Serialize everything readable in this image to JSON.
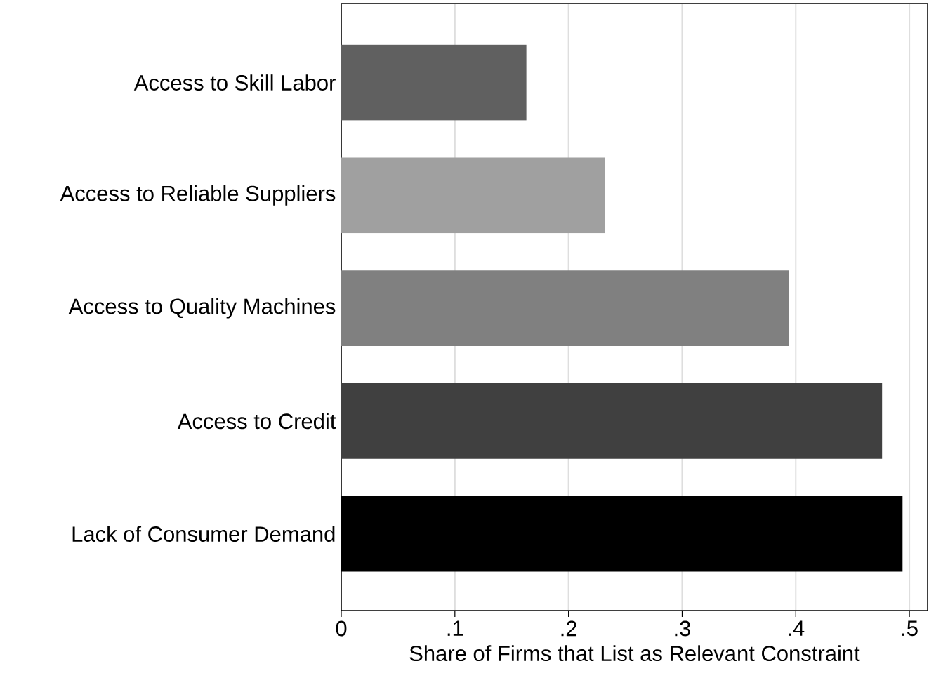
{
  "chart_data": {
    "type": "bar",
    "orientation": "horizontal",
    "categories": [
      "Access to Skill Labor",
      "Access to Reliable Suppliers",
      "Access to Quality Machines",
      "Access to Credit",
      "Lack of Consumer Demand"
    ],
    "values": [
      0.163,
      0.232,
      0.394,
      0.476,
      0.494
    ],
    "colors": [
      "#606060",
      "#a0a0a0",
      "#808080",
      "#404040",
      "#000000"
    ],
    "xlabel": "Share of Firms that List as Relevant Constraint",
    "xlim": [
      0,
      0.516
    ],
    "xticks": [
      0,
      {
        "value": 0.1,
        "label": ".1"
      },
      {
        "value": 0.2,
        "label": ".2"
      },
      {
        "value": 0.3,
        "label": ".3"
      },
      {
        "value": 0.4,
        "label": ".4"
      },
      {
        "value": 0.5,
        "label": ".5"
      }
    ],
    "grid": "x"
  }
}
